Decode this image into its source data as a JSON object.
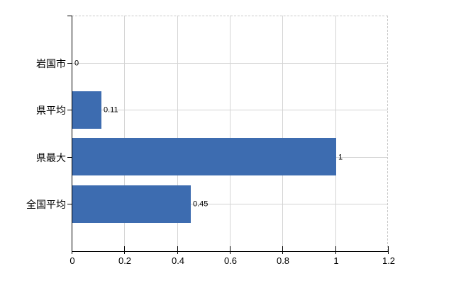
{
  "page": {
    "background": "#ffffff"
  },
  "chart_data": {
    "type": "bar",
    "orientation": "horizontal",
    "title": "",
    "categories": [
      "岩国市",
      "県平均",
      "県最大",
      "全国平均"
    ],
    "values": [
      0,
      0.11,
      1,
      0.45
    ],
    "value_labels": [
      "0",
      "0.11",
      "1",
      "0.45"
    ],
    "x_ticks": [
      0,
      0.2,
      0.4,
      0.6,
      0.8,
      1,
      1.2
    ],
    "x_tick_labels": [
      "0",
      "0.2",
      "0.4",
      "0.6",
      "0.8",
      "1",
      "1.2"
    ],
    "xlim": [
      0,
      1.2
    ],
    "grid": "on",
    "legend": "none",
    "colors": {
      "bar": "#3d6cb0",
      "gridline": "#d4d4d4",
      "plot_border_dashed": "#c9c9c9",
      "axis": "#000000",
      "text": "#000000",
      "background": "#ffffff"
    }
  }
}
